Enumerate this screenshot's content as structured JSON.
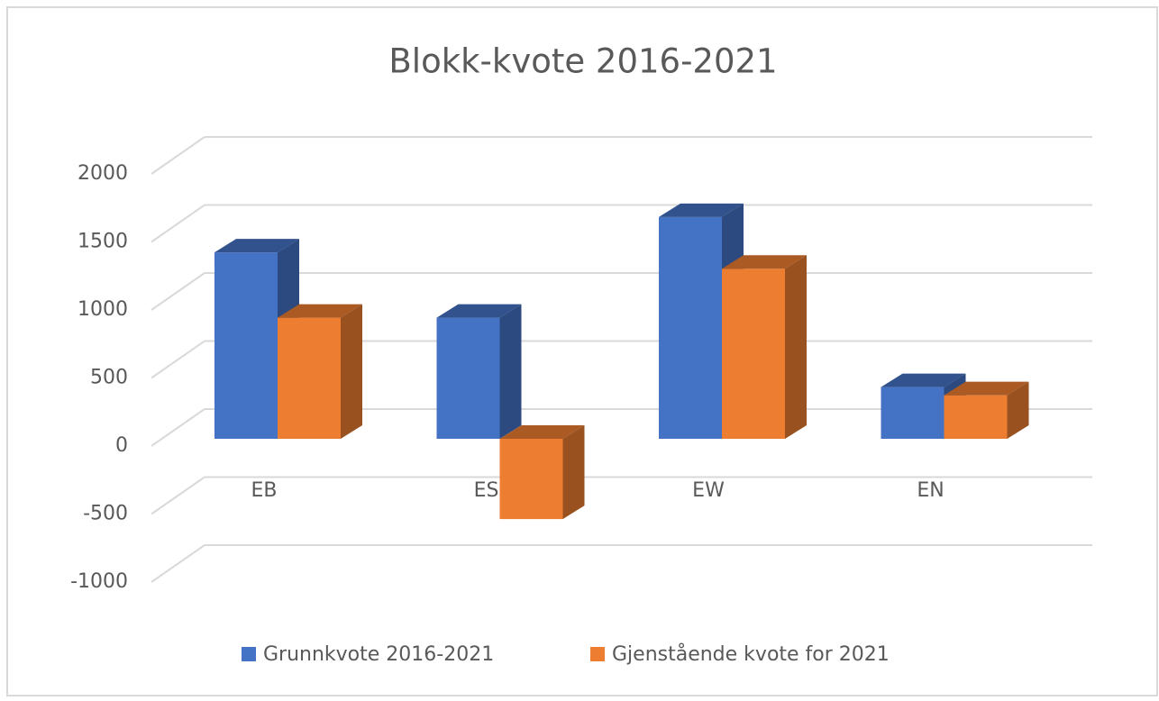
{
  "chart_data": {
    "type": "bar3d",
    "title": "Blokk-kvote 2016-2021",
    "categories": [
      "EB",
      "ES",
      "EW",
      "EN"
    ],
    "series": [
      {
        "name": "Grunnkvote 2016-2021",
        "color": "#4472c4",
        "values": [
          1370,
          890,
          1630,
          380
        ]
      },
      {
        "name": "Gjenstående kvote for 2021",
        "color": "#ed7d31",
        "values": [
          890,
          -590,
          1250,
          320
        ]
      }
    ],
    "ylim": [
      -1000,
      2000
    ],
    "yticks": [
      -1000,
      -500,
      0,
      500,
      1000,
      1500,
      2000
    ],
    "grid": true,
    "legend": "bottom"
  }
}
